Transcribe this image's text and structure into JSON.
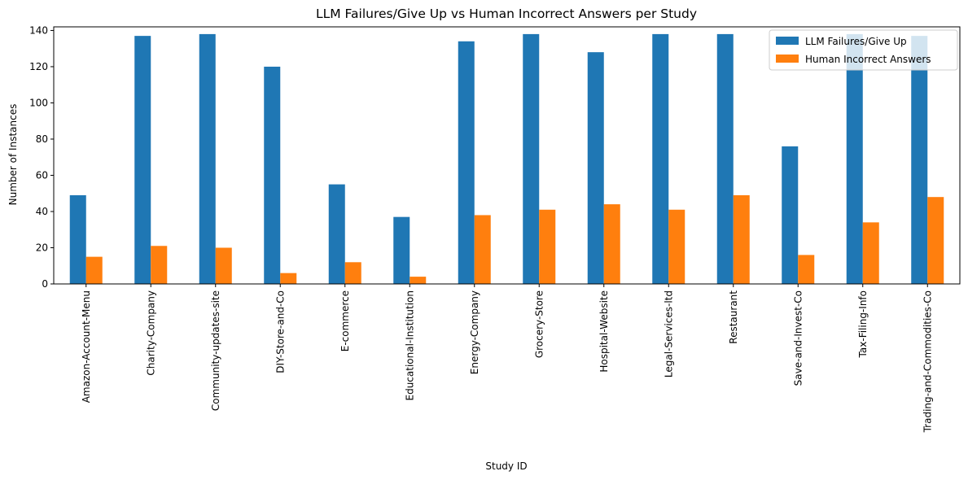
{
  "chart_data": {
    "type": "bar",
    "title": "LLM Failures/Give Up vs Human Incorrect Answers per Study",
    "xlabel": "Study ID",
    "ylabel": "Number of Instances",
    "ylim": [
      0,
      142
    ],
    "yticks": [
      0,
      20,
      40,
      60,
      80,
      100,
      120,
      140
    ],
    "grid": false,
    "legend_position": "top-right",
    "categories": [
      "Amazon-Account-Menu",
      "Charity-Company",
      "Community-updates-site",
      "DIY-Store-and-Co",
      "E-commerce",
      "Educational-Institution",
      "Energy-Company",
      "Grocery-Store",
      "Hospital-Website",
      "Legal-Services-ltd",
      "Restaurant",
      "Save-and-Invest-Co",
      "Tax-Filing-Info",
      "Trading-and-Commodities-Co"
    ],
    "series": [
      {
        "name": "LLM Failures/Give Up",
        "color": "#1f77b4",
        "values": [
          49,
          137,
          138,
          120,
          55,
          37,
          134,
          138,
          128,
          138,
          138,
          76,
          138,
          137
        ]
      },
      {
        "name": "Human Incorrect Answers",
        "color": "#ff7f0e",
        "values": [
          15,
          21,
          20,
          6,
          12,
          4,
          38,
          41,
          44,
          41,
          49,
          16,
          34,
          48
        ]
      }
    ]
  }
}
